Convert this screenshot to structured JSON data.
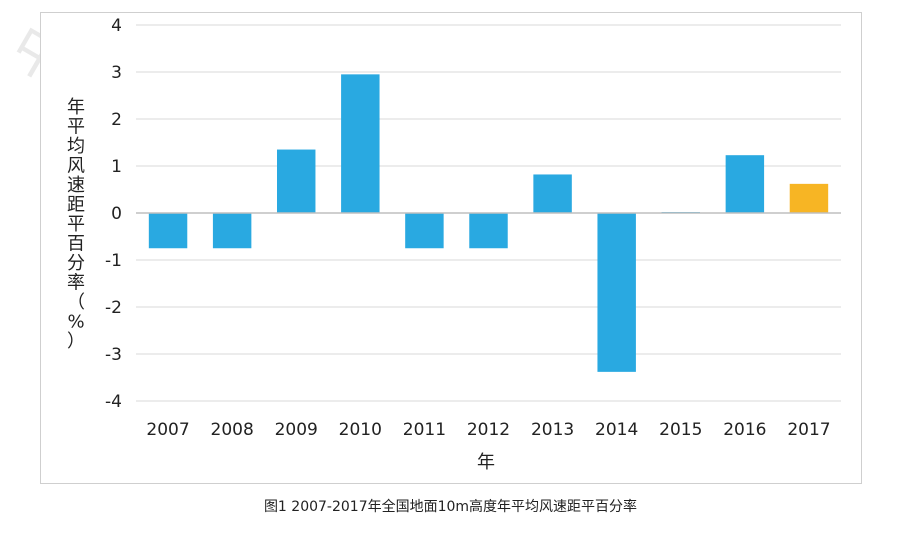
{
  "caption": "图1 2007-2017年全国地面10m高度年平均风速距平百分率",
  "watermark": "中国气象局风能太阳能资源中心",
  "colors": {
    "bar_default": "#29a9e1",
    "bar_highlight": "#f7b524",
    "grid": "#d9d9d9",
    "axis": "#bfbfbf"
  },
  "chart_data": {
    "type": "bar",
    "title": "",
    "xlabel": "年",
    "ylabel": "年平均风速距平百分率（%）",
    "categories": [
      "2007",
      "2008",
      "2009",
      "2010",
      "2011",
      "2012",
      "2013",
      "2014",
      "2015",
      "2016",
      "2017"
    ],
    "values": [
      -0.75,
      -0.75,
      1.35,
      2.95,
      -0.75,
      -0.75,
      0.82,
      -3.38,
      0.02,
      1.23,
      0.62
    ],
    "highlight_index": 10,
    "ylim": [
      -4,
      4
    ],
    "yticks": [
      4,
      3,
      2,
      1,
      0,
      -1,
      -2,
      -3,
      -4
    ],
    "grid": true,
    "legend": "none"
  }
}
